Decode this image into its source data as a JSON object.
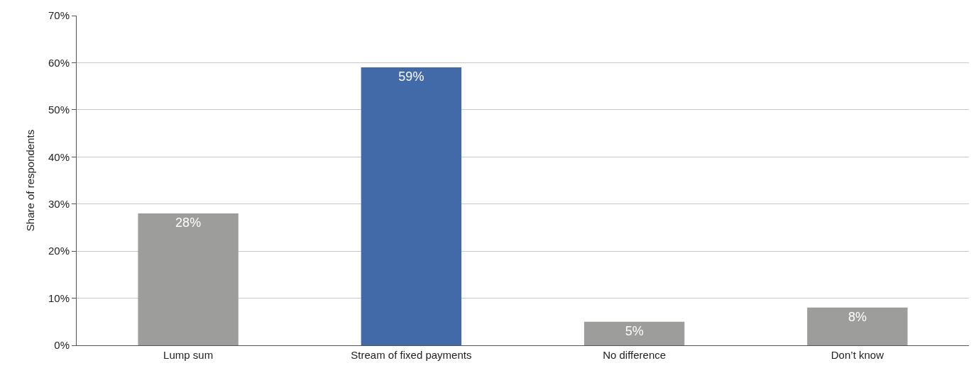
{
  "chart_data": {
    "type": "bar",
    "ylabel": "Share of respondents",
    "categories": [
      "Lump sum",
      "Stream of fixed payments",
      "No difference",
      "Don’t know"
    ],
    "values": [
      28,
      59,
      5,
      8
    ],
    "colors": [
      "#9d9d9c",
      "#436aa8",
      "#9d9d9c",
      "#9d9d9c"
    ],
    "value_labels": [
      "28%",
      "59%",
      "5%",
      "8%"
    ],
    "ylim": [
      0,
      70
    ],
    "yticks": [
      {
        "value": 0,
        "label": "0%"
      },
      {
        "value": 10,
        "label": "10%"
      },
      {
        "value": 20,
        "label": "20%"
      },
      {
        "value": 30,
        "label": "30%"
      },
      {
        "value": 40,
        "label": "40%"
      },
      {
        "value": 50,
        "label": "50%"
      },
      {
        "value": 60,
        "label": "60%"
      },
      {
        "value": 70,
        "label": "70%"
      }
    ],
    "grid": "y",
    "legend": false
  }
}
